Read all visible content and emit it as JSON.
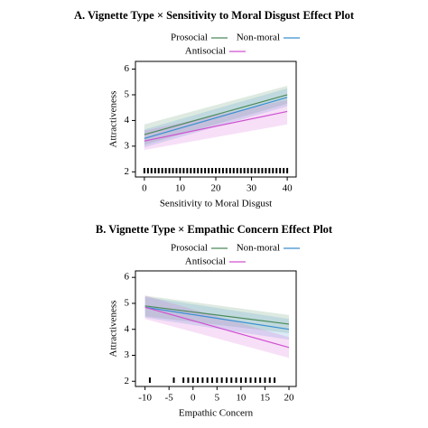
{
  "chart_data": [
    {
      "type": "line",
      "title": "A. Vignette Type × Sensitivity to Moral Disgust Effect Plot",
      "x_label": "Sensitivity to Moral Disgust",
      "y_label": "Attractiveness",
      "x": [
        0,
        40
      ],
      "xlim": [
        -2.5,
        42.5
      ],
      "xticks": [
        0,
        10,
        20,
        30,
        40
      ],
      "ylim": [
        1.8,
        6.3
      ],
      "yticks": [
        2,
        3,
        4,
        5,
        6
      ],
      "series": [
        {
          "name": "Prosocial",
          "color": "#4a8a5a",
          "values": [
            3.45,
            5.0
          ],
          "lower": [
            3.05,
            4.65
          ],
          "upper": [
            3.85,
            5.35
          ]
        },
        {
          "name": "Non-moral",
          "color": "#3a8fd0",
          "values": [
            3.3,
            4.9
          ],
          "lower": [
            2.95,
            4.55
          ],
          "upper": [
            3.65,
            5.25
          ]
        },
        {
          "name": "Antisocial",
          "color": "#d050d0",
          "values": [
            3.2,
            4.35
          ],
          "lower": [
            2.85,
            3.85
          ],
          "upper": [
            3.6,
            4.8
          ]
        }
      ],
      "rug": [
        0,
        1,
        2,
        3,
        4,
        5,
        6,
        7,
        8,
        9,
        10,
        11,
        12,
        13,
        14,
        15,
        16,
        17,
        18,
        19,
        20,
        21,
        22,
        23,
        24,
        25,
        26,
        27,
        28,
        29,
        30,
        31,
        32,
        33,
        34,
        35,
        36,
        37,
        38,
        39,
        40
      ]
    },
    {
      "type": "line",
      "title": "B. Vignette Type × Empathic Concern Effect Plot",
      "x_label": "Empathic Concern",
      "y_label": "Attractiveness",
      "x": [
        -10,
        20
      ],
      "xlim": [
        -12,
        21.5
      ],
      "xticks": [
        -10,
        -5,
        0,
        5,
        10,
        15,
        20
      ],
      "ylim": [
        1.8,
        6.25
      ],
      "yticks": [
        2,
        3,
        4,
        5,
        6
      ],
      "series": [
        {
          "name": "Prosocial",
          "color": "#4a8a5a",
          "values": [
            4.9,
            4.2
          ],
          "lower": [
            4.5,
            3.85
          ],
          "upper": [
            5.3,
            4.55
          ]
        },
        {
          "name": "Non-moral",
          "color": "#3a8fd0",
          "values": [
            4.85,
            4.0
          ],
          "lower": [
            4.45,
            3.6
          ],
          "upper": [
            5.25,
            4.4
          ]
        },
        {
          "name": "Antisocial",
          "color": "#d050d0",
          "values": [
            4.85,
            3.3
          ],
          "lower": [
            4.4,
            2.9
          ],
          "upper": [
            5.3,
            3.7
          ]
        }
      ],
      "rug": [
        -9,
        -4,
        -2,
        -1,
        0,
        1,
        2,
        3,
        4,
        5,
        6,
        7,
        8,
        9,
        10,
        11,
        12,
        13,
        14,
        15,
        16,
        17
      ]
    }
  ]
}
